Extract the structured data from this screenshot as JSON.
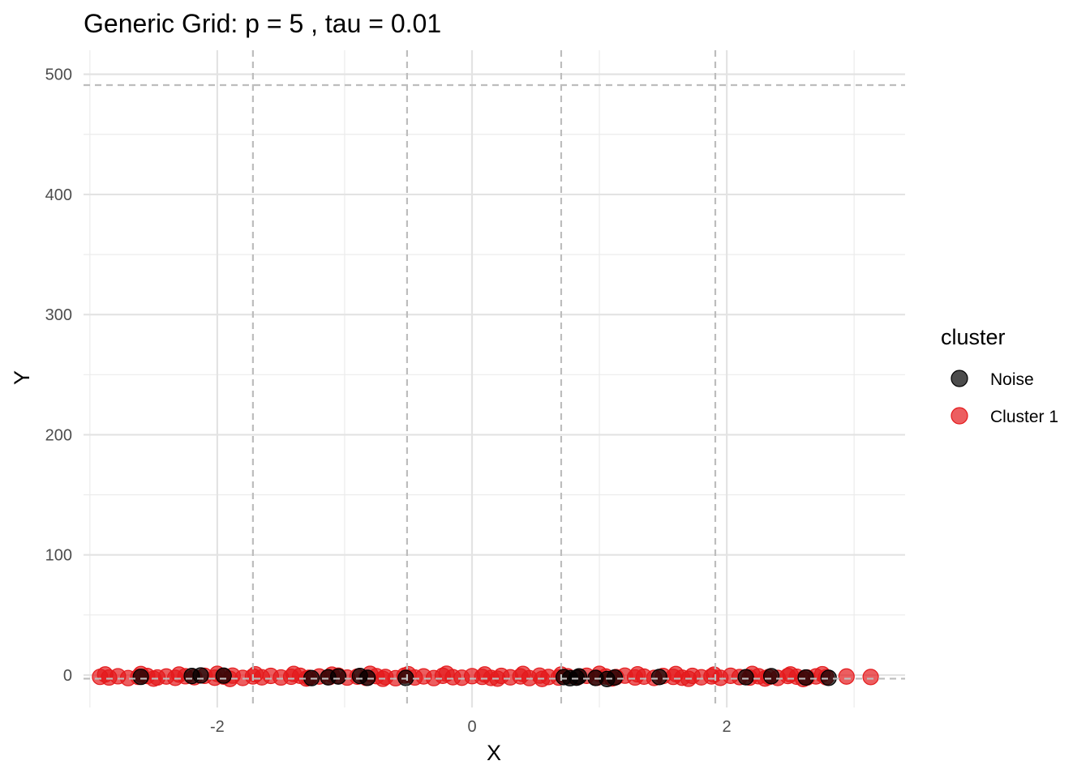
{
  "chart_data": {
    "type": "scatter",
    "title": "Generic Grid: p = 5 , tau = 0.01",
    "xlabel": "X",
    "ylabel": "Y",
    "xlim": [
      -3.05,
      3.4
    ],
    "ylim": [
      -27,
      520
    ],
    "x_ticks": [
      {
        "value": -2,
        "label": "-2"
      },
      {
        "value": 0,
        "label": "0"
      },
      {
        "value": 2,
        "label": "2"
      }
    ],
    "y_ticks": [
      {
        "value": 0,
        "label": "0"
      },
      {
        "value": 100,
        "label": "100"
      },
      {
        "value": 200,
        "label": "200"
      },
      {
        "value": 300,
        "label": "300"
      },
      {
        "value": 400,
        "label": "400"
      },
      {
        "value": 500,
        "label": "500"
      }
    ],
    "x_minor_breaks": [
      -3,
      -1,
      1,
      3
    ],
    "y_minor_breaks": [
      50,
      150,
      250,
      350,
      450
    ],
    "grid": true,
    "grid_lines_x": [
      -1.72,
      -0.51,
      0.7,
      1.91
    ],
    "grid_lines_y": [
      -3,
      491
    ],
    "legend": {
      "title": "cluster",
      "position": "right",
      "entries": [
        {
          "label": "Noise",
          "color": "#000000"
        },
        {
          "label": "Cluster 1",
          "color": "#E41A1C"
        }
      ]
    },
    "series": [
      {
        "name": "Cluster 1",
        "color": "#E41A1C",
        "points": [
          [
            -2.92,
            -1.5
          ],
          [
            -2.85,
            -2
          ],
          [
            -2.78,
            -1
          ],
          [
            -2.7,
            -2.5
          ],
          [
            -2.62,
            -1.5
          ],
          [
            -2.55,
            -0.8
          ],
          [
            -2.47,
            -2
          ],
          [
            -2.4,
            -1.2
          ],
          [
            -2.33,
            -2.3
          ],
          [
            -2.25,
            -1
          ],
          [
            -2.18,
            -1.8
          ],
          [
            -2.1,
            -0.6
          ],
          [
            -2.02,
            -2.2
          ],
          [
            -1.95,
            -1.3
          ],
          [
            -1.88,
            -0.5
          ],
          [
            -1.8,
            -2.4
          ],
          [
            -1.72,
            -1.1
          ],
          [
            -1.65,
            -1.9
          ],
          [
            -1.58,
            -0.7
          ],
          [
            -1.5,
            -2
          ],
          [
            -1.42,
            -1.4
          ],
          [
            -1.35,
            -0.6
          ],
          [
            -1.28,
            -2.3
          ],
          [
            -1.2,
            -1.2
          ],
          [
            -1.12,
            -1.7
          ],
          [
            -1.05,
            -0.5
          ],
          [
            -0.98,
            -2.1
          ],
          [
            -0.9,
            -1.3
          ],
          [
            -0.83,
            -2.4
          ],
          [
            -0.75,
            -0.9
          ],
          [
            -0.68,
            -1.6
          ],
          [
            -0.6,
            -2.6
          ],
          [
            -0.53,
            -0.4
          ],
          [
            -0.45,
            -2
          ],
          [
            -0.38,
            -1.1
          ],
          [
            -0.3,
            -2.5
          ],
          [
            -0.23,
            -0.6
          ],
          [
            -0.15,
            -1.8
          ],
          [
            -0.08,
            -2.2
          ],
          [
            0,
            -0.9
          ],
          [
            0.08,
            -1.5
          ],
          [
            0.15,
            -2.4
          ],
          [
            0.23,
            -0.7
          ],
          [
            0.3,
            -1.9
          ],
          [
            0.38,
            -1.1
          ],
          [
            0.45,
            -2.5
          ],
          [
            0.53,
            -0.5
          ],
          [
            0.6,
            -1.6
          ],
          [
            0.68,
            -2.1
          ],
          [
            0.75,
            -1
          ],
          [
            0.83,
            -1.8
          ],
          [
            0.9,
            -0.6
          ],
          [
            0.98,
            -2.3
          ],
          [
            1.05,
            -1.2
          ],
          [
            1.13,
            -1.7
          ],
          [
            1.2,
            -0.5
          ],
          [
            1.28,
            -2
          ],
          [
            1.35,
            -1.3
          ],
          [
            1.43,
            -2.4
          ],
          [
            1.5,
            -0.8
          ],
          [
            1.58,
            -1.5
          ],
          [
            1.65,
            -2.2
          ],
          [
            1.73,
            -0.7
          ],
          [
            1.8,
            -1.9
          ],
          [
            1.88,
            -1.1
          ],
          [
            1.95,
            -2.3
          ],
          [
            2.03,
            -0.6
          ],
          [
            2.1,
            -1.7
          ],
          [
            2.18,
            -2.1
          ],
          [
            2.25,
            -1
          ],
          [
            2.33,
            -1.6
          ],
          [
            2.4,
            -2.4
          ],
          [
            2.48,
            -0.8
          ],
          [
            2.55,
            -1.4
          ],
          [
            2.63,
            -2
          ],
          [
            2.7,
            -1.1
          ],
          [
            2.78,
            -1.8
          ],
          [
            2.94,
            -1.2
          ],
          [
            3.13,
            -1.6
          ],
          [
            -2.88,
            0.5
          ],
          [
            -2.6,
            0.8
          ],
          [
            -2.3,
            0.4
          ],
          [
            -2,
            1
          ],
          [
            -1.7,
            0.6
          ],
          [
            -1.4,
            0.9
          ],
          [
            -1.1,
            0.3
          ],
          [
            -0.8,
            1
          ],
          [
            -0.5,
            0.7
          ],
          [
            -0.2,
            1.1
          ],
          [
            0.1,
            0.5
          ],
          [
            0.4,
            0.9
          ],
          [
            0.7,
            0.4
          ],
          [
            1,
            1
          ],
          [
            1.3,
            0.6
          ],
          [
            1.6,
            0.8
          ],
          [
            1.9,
            0.3
          ],
          [
            2.2,
            0.9
          ],
          [
            2.5,
            0.5
          ],
          [
            2.75,
            0.7
          ],
          [
            -2.5,
            -3
          ],
          [
            -1.9,
            -3.2
          ],
          [
            -1.3,
            -2.9
          ],
          [
            -0.7,
            -3.1
          ],
          [
            0.2,
            -3
          ],
          [
            0.55,
            -3.2
          ],
          [
            1.1,
            -2.8
          ],
          [
            1.7,
            -3.1
          ],
          [
            2.3,
            -2.9
          ],
          [
            2.6,
            -3.3
          ]
        ]
      },
      {
        "name": "Noise",
        "color": "#000000",
        "points": [
          [
            -2.6,
            -1.5
          ],
          [
            -2.2,
            -0.8
          ],
          [
            -2.13,
            -0.3
          ],
          [
            -1.95,
            -0.5
          ],
          [
            -1.26,
            -2.5
          ],
          [
            -1.13,
            -1.9
          ],
          [
            -1.05,
            -1.2
          ],
          [
            -0.88,
            -0.8
          ],
          [
            -0.82,
            -2.3
          ],
          [
            -0.52,
            -2.4
          ],
          [
            0.72,
            -1.7
          ],
          [
            0.77,
            -2.6
          ],
          [
            0.82,
            -2.2
          ],
          [
            0.84,
            -1.1
          ],
          [
            0.97,
            -2.4
          ],
          [
            1.06,
            -3.3
          ],
          [
            1.12,
            -2
          ],
          [
            1.47,
            -1.6
          ],
          [
            2.15,
            -1.8
          ],
          [
            2.35,
            -0.9
          ],
          [
            2.62,
            -2
          ],
          [
            2.8,
            -2.3
          ]
        ]
      }
    ]
  }
}
